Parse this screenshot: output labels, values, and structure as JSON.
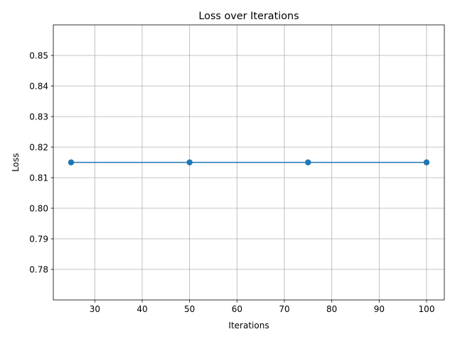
{
  "chart_data": {
    "type": "line",
    "title": "Loss over Iterations",
    "xlabel": "Iterations",
    "ylabel": "Loss",
    "xlim": [
      21.25,
      103.75
    ],
    "ylim": [
      0.77,
      0.86
    ],
    "xticks": [
      30,
      40,
      50,
      60,
      70,
      80,
      90,
      100
    ],
    "yticks": [
      0.78,
      0.79,
      0.8,
      0.81,
      0.82,
      0.83,
      0.84,
      0.85
    ],
    "ytick_labels": [
      "0.78",
      "0.79",
      "0.80",
      "0.81",
      "0.82",
      "0.83",
      "0.84",
      "0.85"
    ],
    "grid": true,
    "series": [
      {
        "x": [
          25,
          50,
          75,
          100
        ],
        "values": [
          0.815,
          0.815,
          0.815,
          0.815
        ],
        "color": "#1f77b4",
        "marker": "circle"
      }
    ]
  }
}
